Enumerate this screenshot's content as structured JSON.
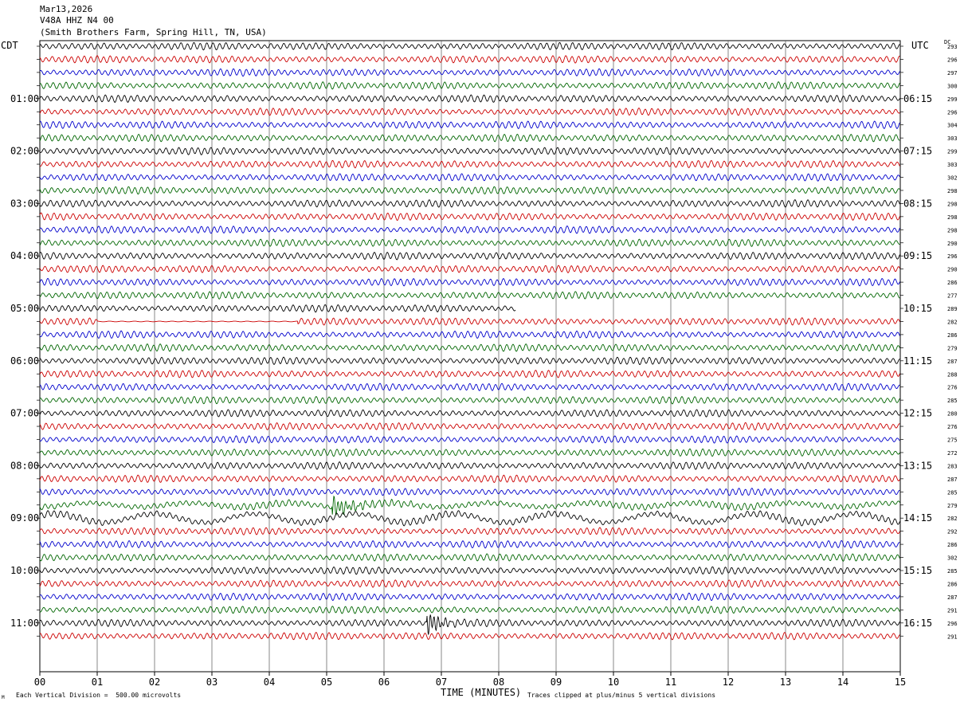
{
  "header": {
    "date": "Mar13,2026",
    "station": "V48A HHZ N4 00",
    "location": "(Smith Brothers Farm, Spring Hill, TN, USA)"
  },
  "axis": {
    "left_zone": "CDT",
    "right_zone": "UTC",
    "dc_label": "DC",
    "xlabel": "TIME (MINUTES)",
    "scale_note": "Each Vertical Division =  500.00 microvolts",
    "clip_note": "Traces clipped at plus/minus 5 vertical divisions",
    "corner_mark": "M"
  },
  "chart_data": {
    "type": "line",
    "xlim": [
      0,
      15
    ],
    "x_ticks": [
      "00",
      "01",
      "02",
      "03",
      "04",
      "05",
      "06",
      "07",
      "08",
      "09",
      "10",
      "11",
      "12",
      "13",
      "14",
      "15"
    ],
    "trace_colors": [
      "#000000",
      "#cc0000",
      "#0000cc",
      "#006600"
    ],
    "left_hour_labels": [
      "01:00",
      "02:00",
      "03:00",
      "04:00",
      "05:00",
      "06:00",
      "07:00",
      "08:00",
      "09:00",
      "10:00",
      "11:00"
    ],
    "right_hour_labels": [
      "06:15",
      "07:15",
      "08:15",
      "09:15",
      "10:15",
      "11:15",
      "12:15",
      "13:15",
      "14:15",
      "15:15",
      "16:15"
    ],
    "dc_offsets": [
      "293",
      "296",
      "297",
      "300",
      "299",
      "296",
      "304",
      "303",
      "299",
      "303",
      "302",
      "298",
      "298",
      "298",
      "298",
      "290",
      "296",
      "290",
      "286",
      "277",
      "289",
      "282",
      "286",
      "279",
      "287",
      "288",
      "276",
      "285",
      "280",
      "276",
      "275",
      "272",
      "283",
      "287",
      "285",
      "279",
      "282",
      "292",
      "286",
      "302",
      "285",
      "286",
      "287",
      "291",
      "296",
      "291"
    ],
    "gap": {
      "trace_index": 20,
      "from_minute": 8.3,
      "to_minute": 15
    },
    "flat_segment": {
      "trace_index": 21,
      "from_minute": 1.0,
      "to_minute": 4.5
    },
    "events": [
      {
        "trace_index": 35,
        "minute": 5.1,
        "label": ""
      },
      {
        "trace_index": 44,
        "minute": 6.75,
        "label": ""
      }
    ]
  }
}
